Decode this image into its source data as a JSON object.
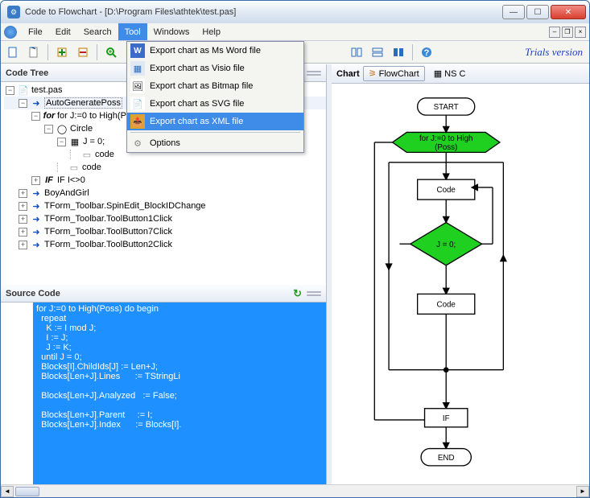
{
  "window": {
    "title": "Code to Flowchart - [D:\\Program Files\\athtek\\test.pas]"
  },
  "menubar": {
    "items": [
      "File",
      "Edit",
      "Search",
      "Tool",
      "Windows",
      "Help"
    ],
    "active_index": 3
  },
  "toolbar": {
    "trial_text": "Trials version"
  },
  "dropdown": {
    "items": [
      "Export chart as Ms Word file",
      "Export chart as Visio file",
      "Export chart as Bitmap file",
      "Export chart as SVG file",
      "Export chart as XML file"
    ],
    "selected_index": 4,
    "options_label": "Options"
  },
  "panels": {
    "code_tree": "Code Tree",
    "source_code": "Source Code",
    "chart": "Chart"
  },
  "chart_tabs": {
    "flowchart": "FlowChart",
    "ns": "NS C"
  },
  "tree": {
    "root": "test.pas",
    "n_auto": "AutoGeneratePoss",
    "n_for": "for J:=0 to High(Pos",
    "n_circle": "Circle",
    "n_j0": "J = 0;",
    "n_code1": "code",
    "n_code2": "code",
    "n_if": "IF I<>0",
    "n_boygirl": "BoyAndGirl",
    "n_spin": "TForm_Toolbar.SpinEdit_BlockIDChange",
    "n_btn1": "TForm_Toolbar.ToolButton1Click",
    "n_btn7": "TForm_Toolbar.ToolButton7Click",
    "n_btn2": "TForm_Toolbar.ToolButton2Click"
  },
  "source": {
    "l1": "for J:=0 to High(Poss) do begin",
    "l2": "  repeat",
    "l3": "    K := I mod J;",
    "l4": "    I := J;",
    "l5": "    J := K;",
    "l6": "  until J = 0;",
    "l7": "  Blocks[I].ChildIds[J] := Len+J;",
    "l8": "  Blocks[Len+J].Lines      := TStringLi",
    "l9": "",
    "l10": "  Blocks[Len+J].Analyzed   := False;",
    "l11": "",
    "l12": "  Blocks[Len+J].Parent     := I;",
    "l13": "  Blocks[Len+J].Index      := Blocks[I]."
  },
  "flowchart": {
    "start": "START",
    "for": "for J:=0 to High\n(Poss)",
    "code1": "Code",
    "j0": "J = 0;",
    "code2": "Code",
    "if": "IF",
    "end": "END",
    "colors": {
      "green": "#1fd020",
      "node_border": "#000",
      "line": "#000"
    }
  }
}
